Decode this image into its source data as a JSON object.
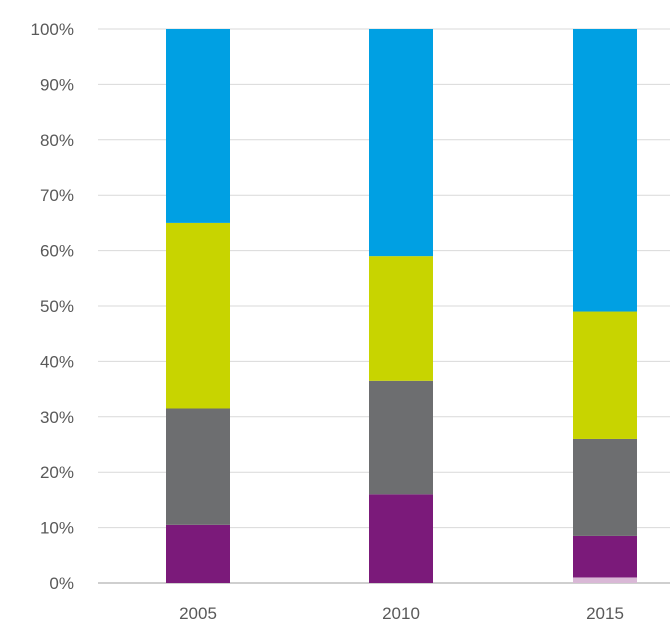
{
  "chart_data": {
    "type": "bar",
    "stacked": true,
    "percent": true,
    "categories": [
      "2005",
      "2010",
      "2015"
    ],
    "y_ticks": [
      "0%",
      "10%",
      "20%",
      "30%",
      "40%",
      "50%",
      "60%",
      "70%",
      "80%",
      "90%",
      "100%"
    ],
    "ylim": [
      0,
      100
    ],
    "grid": true,
    "series": [
      {
        "color": "#d9b8d6",
        "values": [
          0,
          0,
          1
        ]
      },
      {
        "color": "#7b1a7a",
        "values": [
          10.5,
          16.0,
          7.5
        ]
      },
      {
        "color": "#6d6e70",
        "values": [
          21.0,
          20.5,
          17.5
        ]
      },
      {
        "color": "#c8d400",
        "values": [
          33.5,
          22.5,
          23.0
        ]
      },
      {
        "color": "#00a0e3",
        "values": [
          35.0,
          41.0,
          51.0
        ]
      }
    ]
  }
}
